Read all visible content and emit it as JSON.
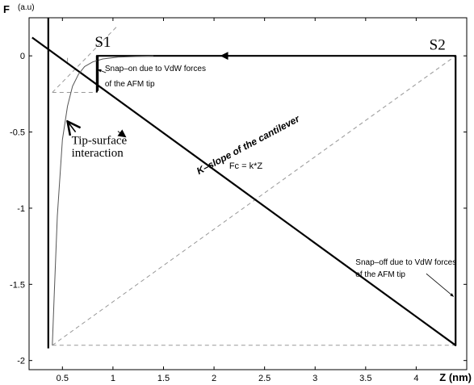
{
  "chart_data": {
    "type": "line",
    "title": "",
    "xlabel": "Z (nm)",
    "ylabel": "F",
    "ylabel_unit": "(a.u)",
    "xlim": [
      0.17,
      4.5
    ],
    "ylim": [
      -2.06,
      0.25
    ],
    "xticks": [
      0.5,
      1,
      1.5,
      2,
      2.5,
      3,
      3.5,
      4
    ],
    "xtick_labels": [
      "0.5",
      "1",
      "1.5",
      "2",
      "2.5",
      "3",
      "3.5",
      "4"
    ],
    "yticks": [
      0,
      -0.5,
      -1,
      -1.5,
      -2
    ],
    "ytick_labels": [
      "0",
      "-0.5",
      "-1",
      "-1.5",
      "-2"
    ],
    "grid": false,
    "series": [
      {
        "style": "thick",
        "points": [
          [
            0.2,
            0.12
          ],
          [
            4.39,
            -1.9
          ],
          [
            4.39,
            0
          ],
          [
            0.84,
            0
          ],
          [
            0.84,
            -0.24
          ]
        ]
      },
      {
        "style": "thin",
        "points": [
          [
            0.4,
            -1.9
          ],
          [
            0.42,
            -1.55
          ],
          [
            0.45,
            -1.05
          ],
          [
            0.5,
            -0.55
          ],
          [
            0.55,
            -0.33
          ],
          [
            0.6,
            -0.2
          ],
          [
            0.66,
            -0.12
          ],
          [
            0.72,
            -0.07
          ],
          [
            0.8,
            -0.04
          ],
          [
            0.9,
            -0.02
          ],
          [
            1.05,
            -0.008
          ],
          [
            1.4,
            0
          ]
        ]
      },
      {
        "style": "thick-vertical",
        "points": [
          [
            0.36,
            0.25
          ],
          [
            0.36,
            -1.92
          ]
        ]
      },
      {
        "style": "thick-short",
        "points": [
          [
            0.85,
            -0.23
          ],
          [
            0.85,
            0.0
          ]
        ]
      }
    ],
    "dashed": [
      {
        "points": [
          [
            0.4,
            -1.9
          ],
          [
            4.39,
            0
          ]
        ]
      },
      {
        "points": [
          [
            0.4,
            -0.24
          ],
          [
            1.05,
            0.2
          ]
        ]
      },
      {
        "points": [
          [
            0.4,
            -1.9
          ],
          [
            4.39,
            -1.9
          ]
        ]
      },
      {
        "points": [
          [
            0.4,
            -0.24
          ],
          [
            0.84,
            -0.24
          ]
        ]
      },
      {
        "points": [
          [
            0.55,
            -0.04
          ],
          [
            0.55,
            0.0
          ]
        ]
      }
    ],
    "arrows": [
      {
        "at": [
          1.1,
          -0.52
        ],
        "direction": "along-thick-diagonal"
      },
      {
        "at": [
          2.1,
          0
        ],
        "direction": "left"
      }
    ],
    "annotations": [
      {
        "text": "S1",
        "class": "serif-label",
        "at": [
          0.82,
          0.06
        ]
      },
      {
        "text": "S2",
        "class": "serif-label",
        "at": [
          4.13,
          0.04
        ]
      },
      {
        "text": "Snap–on due to VdW forces",
        "class": "sans-note",
        "at": [
          0.92,
          -0.1
        ]
      },
      {
        "text": "of the AFM tip",
        "class": "sans-note",
        "at": [
          0.92,
          -0.2
        ]
      },
      {
        "text": "Tip-surface",
        "class": "serif-note",
        "at": [
          0.59,
          -0.58
        ]
      },
      {
        "text": "interaction",
        "class": "serif-note",
        "at": [
          0.59,
          -0.66
        ]
      },
      {
        "text": "K–slope of the cantilever",
        "class": "slope-label",
        "at": [
          1.85,
          -0.78
        ],
        "rotate": -28
      },
      {
        "text": "Fc = k*Z",
        "class": "formula",
        "at": [
          2.15,
          -0.74
        ]
      },
      {
        "text": "Snap–off due to VdW forces",
        "class": "sans-note",
        "at": [
          3.4,
          -1.37
        ]
      },
      {
        "text": "of the AFM tip",
        "class": "sans-note",
        "at": [
          3.4,
          -1.45
        ]
      }
    ],
    "pointer_arrows": [
      {
        "from": [
          0.93,
          -0.11
        ],
        "to": [
          0.85,
          -0.09
        ],
        "style": "small"
      },
      {
        "from": [
          0.63,
          -0.5
        ],
        "to": [
          0.55,
          -0.43
        ],
        "style": "open"
      },
      {
        "from": [
          4.1,
          -1.43
        ],
        "to": [
          4.37,
          -1.58
        ],
        "style": "small"
      }
    ]
  }
}
